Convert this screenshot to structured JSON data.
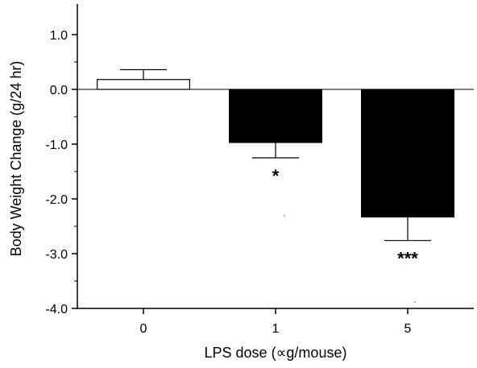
{
  "chart_data": {
    "type": "bar",
    "categories": [
      "0",
      "1",
      "5"
    ],
    "values": [
      0.18,
      -0.97,
      -2.33
    ],
    "error_bars": [
      0.18,
      0.28,
      0.43
    ],
    "error_direction": [
      "up",
      "down",
      "down"
    ],
    "significance": [
      "",
      "*",
      "***"
    ],
    "xlabel": "LPS dose (∝g/mouse)",
    "ylabel": "Body Weight Change (g/24 hr)",
    "ylim": [
      -4.0,
      1.5
    ],
    "yticks": [
      1.0,
      0.0,
      -1.0,
      -2.0,
      -3.0,
      -4.0
    ],
    "ytick_labels": [
      "1.0",
      "0.0",
      "-1.0",
      "-2.0",
      "-3.0",
      "-4.0"
    ],
    "bar_colors": [
      "#ffffff",
      "#000000",
      "#000000"
    ],
    "grid": false,
    "legend": "none"
  }
}
